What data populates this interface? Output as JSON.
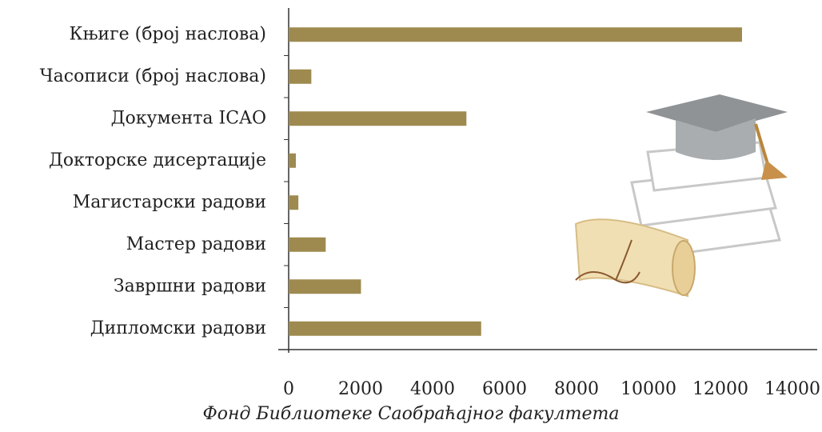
{
  "chart_data": {
    "type": "hbar",
    "title": "Фонд Библиотеке Саобраћајног факултета",
    "categories": [
      "Књиге (број наслова)",
      "Часописи (број наслова)",
      "Документа ICAO",
      "Докторске дисертације",
      "Магистарски радови",
      "Мастер радови",
      "Завршни радови",
      "Дипломски радови"
    ],
    "values": [
      12600,
      630,
      4940,
      200,
      270,
      1030,
      2010,
      5350
    ],
    "color": "#9e8a4f",
    "xlim": [
      0,
      14000
    ],
    "xticks": [
      0,
      2000,
      4000,
      6000,
      8000,
      10000,
      12000,
      14000
    ],
    "grid": false
  }
}
